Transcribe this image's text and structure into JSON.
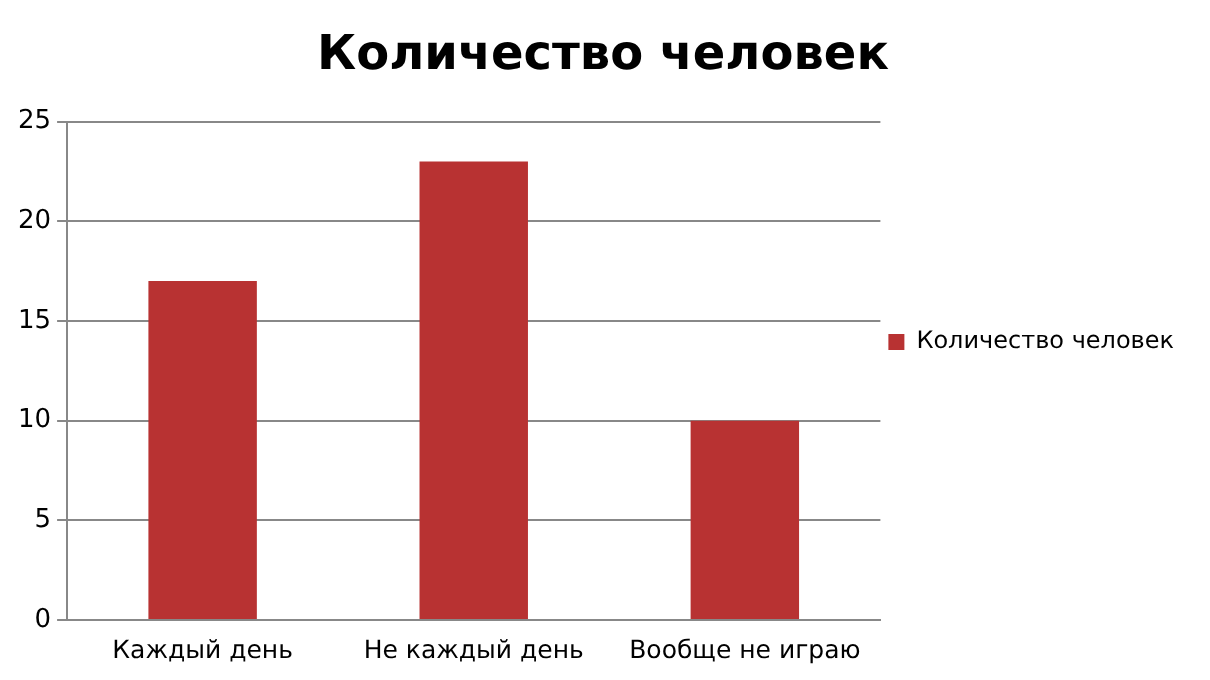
{
  "chart_data": {
    "type": "bar",
    "title": "Количество человек",
    "categories": [
      "Каждый день",
      "Не каждый день",
      "Вообще не играю"
    ],
    "series": [
      {
        "name": "Количество человек",
        "color": "#b83232",
        "values": [
          17,
          23,
          10
        ]
      }
    ],
    "ylim": [
      0,
      25
    ],
    "yticks": [
      0,
      5,
      10,
      15,
      20,
      25
    ],
    "grid": "y",
    "legend": "right"
  }
}
